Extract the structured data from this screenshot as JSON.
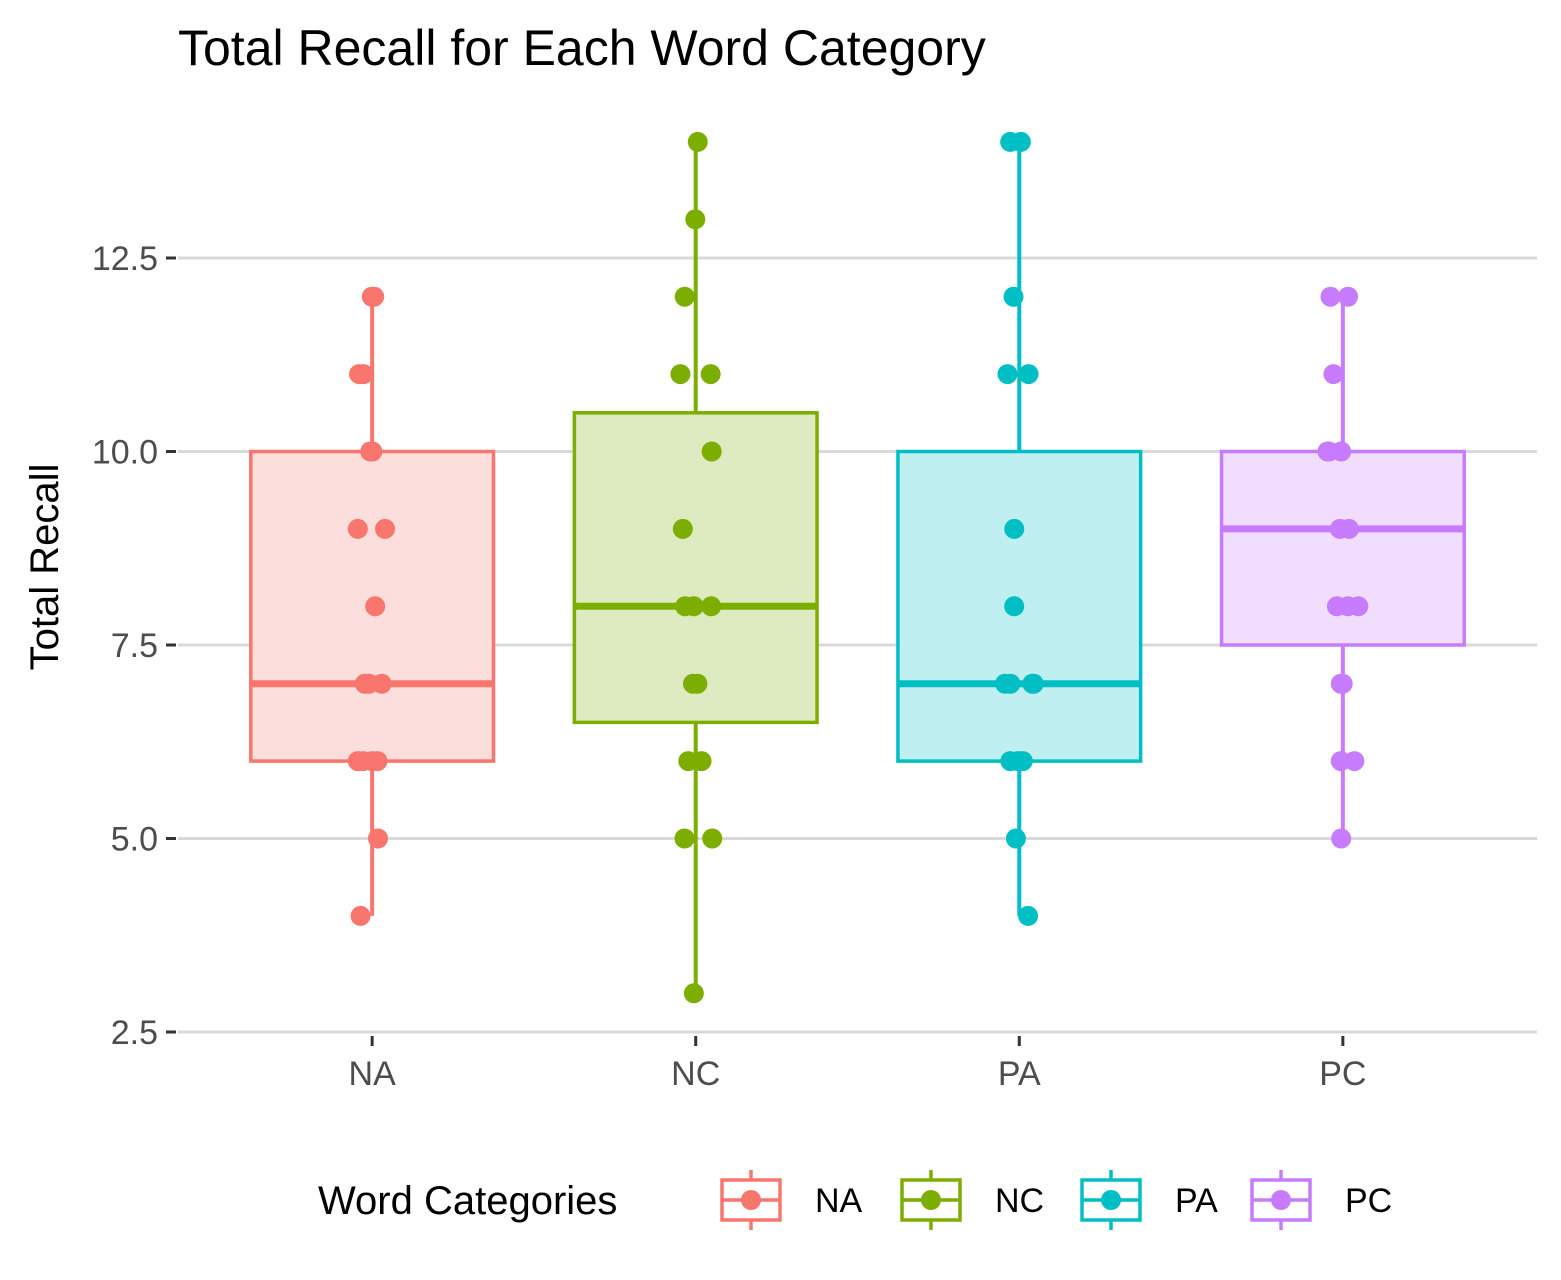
{
  "chart_data": {
    "type": "boxplot",
    "title": "Total Recall for Each Word Category",
    "xlabel": "",
    "ylabel": "Total Recall",
    "ylim": [
      2.5,
      14.25
    ],
    "yticks": [
      "2.5",
      "5.0",
      "7.5",
      "10.0",
      "12.5"
    ],
    "ytick_values": [
      2.5,
      5.0,
      7.5,
      10.0,
      12.5
    ],
    "categories": [
      "NA",
      "NC",
      "PA",
      "PC"
    ],
    "grid": "horizontal",
    "legend": {
      "title": "Word Categories",
      "position": "bottom",
      "entries": [
        "NA",
        "NC",
        "PA",
        "PC"
      ]
    },
    "colors": [
      "#F8766D",
      "#7CAE00",
      "#00BFC4",
      "#C77CFF"
    ],
    "fill_colors": [
      "#FCDEDC",
      "#DEEAC0",
      "#BFEFF0",
      "#F1DEFF"
    ],
    "boxes": [
      {
        "name": "NA",
        "min": 4,
        "q1": 6,
        "median": 7,
        "q3": 10,
        "max": 12
      },
      {
        "name": "NC",
        "min": 3,
        "q1": 6.5,
        "median": 8,
        "q3": 10.5,
        "max": 14
      },
      {
        "name": "PA",
        "min": 4,
        "q1": 6,
        "median": 7,
        "q3": 10,
        "max": 14
      },
      {
        "name": "PC",
        "min": 5,
        "q1": 7.5,
        "median": 9,
        "q3": 10,
        "max": 12
      }
    ],
    "points": [
      {
        "category": "NA",
        "values": [
          12,
          12,
          11,
          11,
          10,
          10,
          9,
          9,
          8,
          7,
          7,
          7,
          6,
          6,
          6,
          6,
          5,
          4
        ]
      },
      {
        "category": "NC",
        "values": [
          14,
          13,
          12,
          11,
          11,
          10,
          9,
          8,
          8,
          8,
          7,
          7,
          6,
          6,
          5,
          5,
          3
        ]
      },
      {
        "category": "PA",
        "values": [
          14,
          14,
          12,
          11,
          11,
          9,
          8,
          7,
          7,
          7,
          7,
          6,
          6,
          6,
          5,
          4
        ]
      },
      {
        "category": "PC",
        "values": [
          12,
          12,
          11,
          10,
          10,
          10,
          9,
          9,
          8,
          8,
          8,
          7,
          7,
          6,
          6,
          5
        ]
      }
    ]
  }
}
